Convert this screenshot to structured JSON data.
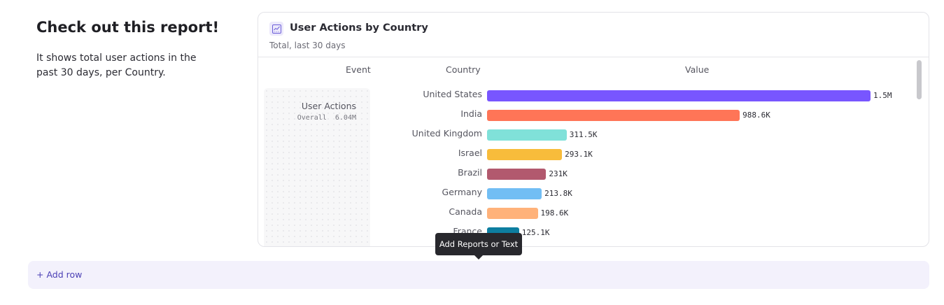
{
  "intro": {
    "title": "Check out this report!",
    "text": "It shows total user actions in the past 30 days, per Country."
  },
  "report": {
    "icon": "line-chart-icon",
    "title": "User Actions by Country",
    "subtitle": "Total, last 30 days",
    "columns": [
      "Event",
      "Country",
      "Value"
    ],
    "event": {
      "name": "User Actions",
      "overall_label": "Overall",
      "overall_value": "6.04M"
    }
  },
  "chart_data": {
    "type": "bar",
    "orientation": "horizontal",
    "categories": [
      "United States",
      "India",
      "United Kingdom",
      "Israel",
      "Brazil",
      "Germany",
      "Canada",
      "France"
    ],
    "values": [
      1500000,
      988600,
      311500,
      293100,
      231000,
      213800,
      198600,
      125100
    ],
    "labels": [
      "1.5M",
      "988.6K",
      "311.5K",
      "293.1K",
      "231K",
      "213.8K",
      "198.6K",
      "125.1K"
    ],
    "colors": [
      "#7856ff",
      "#ff7557",
      "#80e1d9",
      "#f8bc3b",
      "#b2596e",
      "#72bef4",
      "#ffb27a",
      "#0d7ea0"
    ]
  },
  "tooltip": "Add Reports or Text",
  "add_row": "+ Add row"
}
